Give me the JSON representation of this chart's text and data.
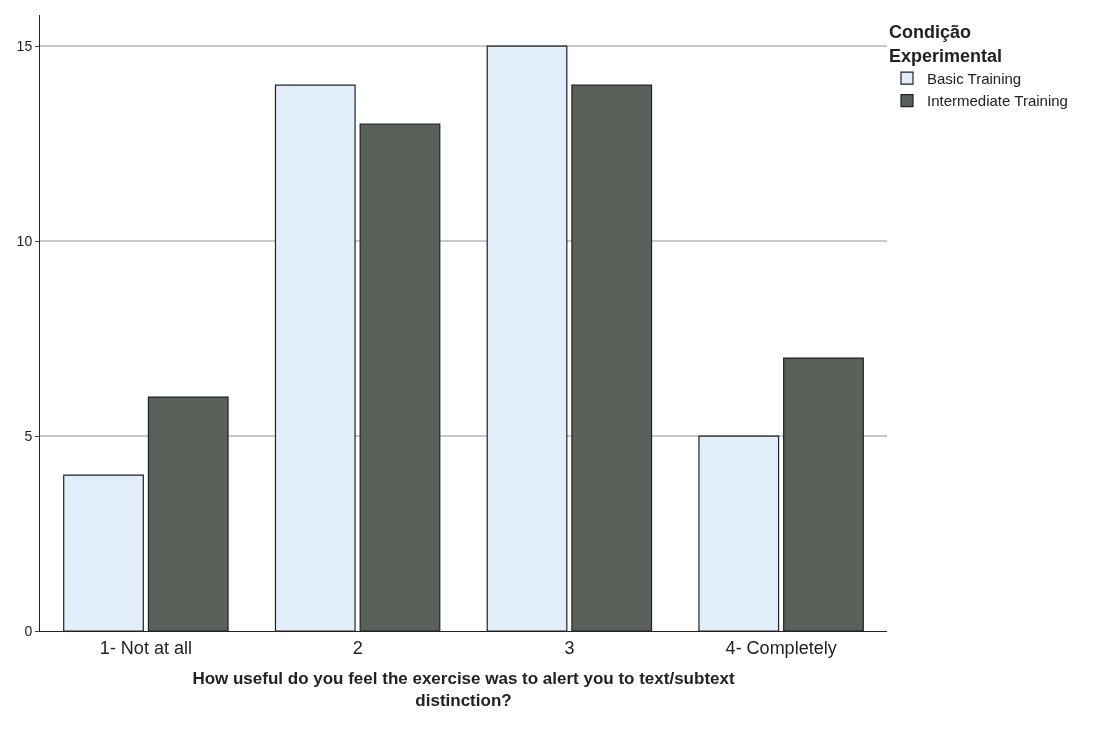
{
  "chart_data": {
    "type": "bar",
    "xlabel": "How useful do you feel the exercise was to alert you to text/subtext distinction?",
    "legend_title": "Condição Experimental",
    "categories": [
      "1- Not at all",
      "2",
      "3",
      "4- Completely"
    ],
    "series": [
      {
        "name": "Basic Training",
        "color": "#e2eefa",
        "values": [
          4,
          14,
          15,
          5
        ]
      },
      {
        "name": "Intermediate Training",
        "color": "#5a605a",
        "values": [
          6,
          13,
          14,
          7
        ]
      }
    ],
    "ylim": [
      0,
      15.8
    ],
    "yticks": [
      0,
      5,
      10,
      15
    ],
    "grid": "y",
    "legend": "top right"
  }
}
